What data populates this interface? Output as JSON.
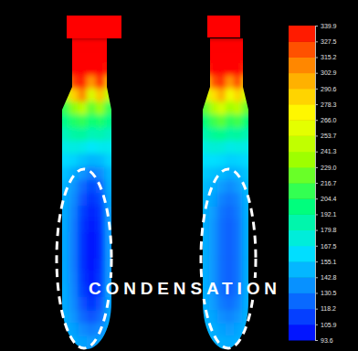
{
  "chart_data": {
    "type": "contour",
    "annotation": "CONDENSATION",
    "colorbar": {
      "range": [
        93.6,
        339.9
      ],
      "ticks": [
        93.6,
        105.9,
        118.2,
        130.5,
        142.8,
        155.1,
        167.5,
        179.8,
        192.1,
        204.4,
        216.7,
        {
          "value": 229,
          "label": "229.0"
        },
        241.3,
        253.7,
        {
          "value": 266,
          "label": "266.0"
        },
        278.3,
        290.6,
        302.9,
        315.2,
        327.5,
        339.9
      ]
    },
    "fields": [
      {
        "cap": 339.9,
        "cells": [
          [
            339.9,
            339.9,
            339.9,
            339.9,
            339.9,
            339.9
          ],
          [
            339.9,
            339.9,
            339.9,
            339.9,
            339.9,
            339.9
          ],
          [
            335,
            339.9,
            339.9,
            339.9,
            339.9,
            335
          ],
          [
            290,
            325,
            335,
            305,
            330,
            295
          ],
          [
            240,
            285,
            310,
            255,
            290,
            245
          ],
          [
            210,
            230,
            245,
            220,
            235,
            210
          ],
          [
            195,
            205,
            210,
            200,
            205,
            195
          ],
          [
            182,
            188,
            190,
            183,
            185,
            180
          ],
          [
            170,
            172,
            170,
            165,
            168,
            168
          ],
          [
            160,
            158,
            152,
            148,
            150,
            158
          ],
          [
            152,
            145,
            138,
            130,
            135,
            148
          ],
          [
            148,
            138,
            125,
            115,
            122,
            145
          ],
          [
            146,
            135,
            118,
            108,
            115,
            142
          ],
          [
            145,
            132,
            112,
            103,
            110,
            140
          ],
          [
            145,
            130,
            110,
            100,
            108,
            140
          ],
          [
            144,
            130,
            108,
            98,
            106,
            140
          ],
          [
            144,
            130,
            108,
            98,
            106,
            140
          ],
          [
            144,
            130,
            108,
            98,
            108,
            140
          ],
          [
            144,
            132,
            110,
            100,
            110,
            140
          ],
          [
            145,
            133,
            112,
            103,
            112,
            141
          ],
          [
            145,
            135,
            118,
            108,
            118,
            142
          ],
          [
            146,
            138,
            125,
            118,
            125,
            143
          ],
          [
            146,
            142,
            135,
            130,
            135,
            145
          ],
          [
            147,
            145,
            142,
            140,
            142,
            146
          ]
        ]
      },
      {
        "cap": 339.9,
        "cells": [
          [
            339.9,
            339.9,
            339.9,
            339.9,
            339.9,
            339.9
          ],
          [
            339.9,
            339.9,
            339.9,
            339.9,
            339.9,
            339.9
          ],
          [
            330,
            339.9,
            339.9,
            339.9,
            339.9,
            330
          ],
          [
            285,
            320,
            330,
            305,
            325,
            290
          ],
          [
            250,
            280,
            300,
            265,
            285,
            250
          ],
          [
            220,
            240,
            255,
            235,
            245,
            222
          ],
          [
            200,
            212,
            220,
            208,
            214,
            200
          ],
          [
            185,
            192,
            195,
            188,
            190,
            184
          ],
          [
            172,
            175,
            174,
            170,
            172,
            170
          ],
          [
            162,
            162,
            160,
            157,
            158,
            160
          ],
          [
            155,
            152,
            150,
            145,
            148,
            153
          ],
          [
            150,
            146,
            140,
            135,
            140,
            150
          ],
          [
            148,
            142,
            132,
            128,
            133,
            147
          ],
          [
            147,
            140,
            128,
            124,
            130,
            146
          ],
          [
            146,
            138,
            126,
            122,
            128,
            145
          ],
          [
            146,
            138,
            126,
            122,
            128,
            145
          ],
          [
            146,
            138,
            126,
            122,
            128,
            145
          ],
          [
            146,
            138,
            126,
            122,
            128,
            145
          ],
          [
            146,
            138,
            126,
            122,
            128,
            145
          ],
          [
            146,
            138,
            126,
            122,
            128,
            145
          ],
          [
            146,
            140,
            130,
            126,
            132,
            146
          ],
          [
            147,
            143,
            136,
            133,
            138,
            147
          ],
          [
            148,
            146,
            142,
            140,
            143,
            148
          ],
          [
            148,
            147,
            146,
            145,
            146,
            148
          ]
        ]
      }
    ]
  }
}
